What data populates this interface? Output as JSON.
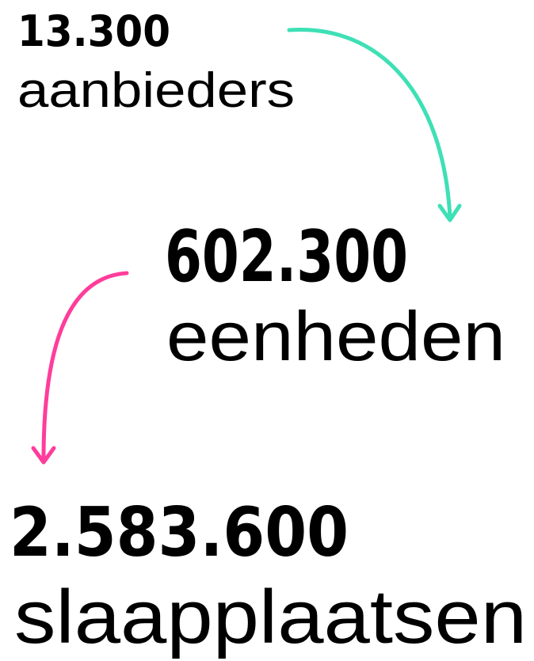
{
  "items": [
    {
      "number": "13.300",
      "label": "aanbieders"
    },
    {
      "number": "602.300",
      "label": "eenheden"
    },
    {
      "number": "2.583.600",
      "label": "slaapplaatsen"
    }
  ]
}
